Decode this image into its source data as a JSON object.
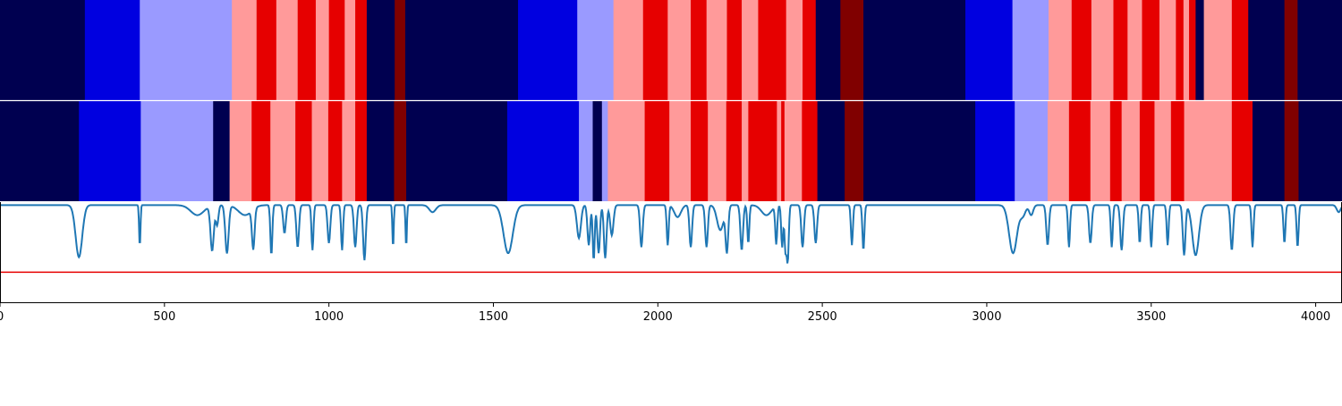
{
  "chart_data": {
    "type": "heatmap",
    "x_range": [
      0,
      4080
    ],
    "x_ticks": [
      0,
      500,
      1000,
      1500,
      2000,
      2500,
      3000,
      3500,
      4000
    ],
    "x_tick_labels": [
      "0",
      "500",
      "1000",
      "1500",
      "2000",
      "2500",
      "3000",
      "3500",
      "4000"
    ],
    "class_colors": {
      "0": "#000050",
      "1": "#0000e0",
      "2": "#9a9aff",
      "3": "#ff9a9a",
      "4": "#e60000",
      "5": "#800000"
    },
    "tracks": [
      {
        "segments": [
          [
            0,
            258,
            0
          ],
          [
            258,
            425,
            1
          ],
          [
            425,
            705,
            2
          ],
          [
            705,
            780,
            3
          ],
          [
            780,
            840,
            4
          ],
          [
            840,
            905,
            3
          ],
          [
            905,
            960,
            4
          ],
          [
            960,
            1000,
            3
          ],
          [
            1000,
            1048,
            4
          ],
          [
            1048,
            1080,
            3
          ],
          [
            1080,
            1115,
            4
          ],
          [
            1115,
            1200,
            0
          ],
          [
            1200,
            1232,
            5
          ],
          [
            1232,
            1575,
            0
          ],
          [
            1575,
            1755,
            1
          ],
          [
            1755,
            1865,
            2
          ],
          [
            1865,
            1955,
            3
          ],
          [
            1955,
            2030,
            4
          ],
          [
            2030,
            2100,
            3
          ],
          [
            2100,
            2148,
            4
          ],
          [
            2148,
            2210,
            3
          ],
          [
            2210,
            2255,
            4
          ],
          [
            2255,
            2305,
            3
          ],
          [
            2305,
            2390,
            4
          ],
          [
            2390,
            2440,
            3
          ],
          [
            2440,
            2480,
            4
          ],
          [
            2480,
            2555,
            0
          ],
          [
            2555,
            2625,
            5
          ],
          [
            2625,
            2935,
            0
          ],
          [
            2935,
            3078,
            1
          ],
          [
            3078,
            3188,
            2
          ],
          [
            3188,
            3258,
            3
          ],
          [
            3258,
            3318,
            4
          ],
          [
            3318,
            3385,
            3
          ],
          [
            3385,
            3428,
            4
          ],
          [
            3428,
            3472,
            3
          ],
          [
            3472,
            3525,
            4
          ],
          [
            3525,
            3575,
            3
          ],
          [
            3575,
            3598,
            4
          ],
          [
            3598,
            3615,
            3
          ],
          [
            3615,
            3635,
            4
          ],
          [
            3635,
            3660,
            0
          ],
          [
            3660,
            3745,
            3
          ],
          [
            3745,
            3795,
            4
          ],
          [
            3795,
            3905,
            0
          ],
          [
            3905,
            3945,
            5
          ],
          [
            3945,
            4080,
            0
          ]
        ]
      },
      {
        "segments": [
          [
            0,
            240,
            0
          ],
          [
            240,
            428,
            1
          ],
          [
            428,
            648,
            2
          ],
          [
            648,
            698,
            0
          ],
          [
            698,
            765,
            3
          ],
          [
            765,
            822,
            4
          ],
          [
            822,
            898,
            3
          ],
          [
            898,
            948,
            4
          ],
          [
            948,
            998,
            3
          ],
          [
            998,
            1040,
            4
          ],
          [
            1040,
            1080,
            3
          ],
          [
            1080,
            1115,
            4
          ],
          [
            1115,
            1198,
            0
          ],
          [
            1198,
            1235,
            5
          ],
          [
            1235,
            1542,
            0
          ],
          [
            1542,
            1760,
            1
          ],
          [
            1760,
            1802,
            2
          ],
          [
            1802,
            1830,
            0
          ],
          [
            1830,
            1848,
            2
          ],
          [
            1848,
            1960,
            3
          ],
          [
            1960,
            2035,
            4
          ],
          [
            2035,
            2100,
            3
          ],
          [
            2100,
            2152,
            4
          ],
          [
            2152,
            2208,
            3
          ],
          [
            2208,
            2255,
            4
          ],
          [
            2255,
            2275,
            3
          ],
          [
            2275,
            2362,
            4
          ],
          [
            2362,
            2375,
            3
          ],
          [
            2375,
            2385,
            4
          ],
          [
            2385,
            2438,
            3
          ],
          [
            2438,
            2485,
            4
          ],
          [
            2485,
            2568,
            0
          ],
          [
            2568,
            2625,
            5
          ],
          [
            2625,
            2965,
            0
          ],
          [
            2965,
            3085,
            1
          ],
          [
            3085,
            3185,
            2
          ],
          [
            3185,
            3250,
            3
          ],
          [
            3250,
            3315,
            4
          ],
          [
            3315,
            3375,
            3
          ],
          [
            3375,
            3410,
            4
          ],
          [
            3410,
            3465,
            3
          ],
          [
            3465,
            3510,
            4
          ],
          [
            3510,
            3560,
            3
          ],
          [
            3560,
            3600,
            4
          ],
          [
            3600,
            3745,
            3
          ],
          [
            3745,
            3808,
            4
          ],
          [
            3808,
            3905,
            0
          ],
          [
            3905,
            3948,
            5
          ],
          [
            3948,
            4080,
            0
          ]
        ]
      }
    ],
    "series": [
      {
        "color": "#1f77b4",
        "baseline": 0.97,
        "dips": [
          [
            240,
            0.52,
            10
          ],
          [
            425,
            0.42,
            2
          ],
          [
            600,
            0.1,
            20
          ],
          [
            645,
            0.45,
            5
          ],
          [
            660,
            0.2,
            4
          ],
          [
            690,
            0.48,
            5
          ],
          [
            745,
            0.1,
            20
          ],
          [
            770,
            0.4,
            4
          ],
          [
            825,
            0.5,
            3
          ],
          [
            865,
            0.28,
            4
          ],
          [
            905,
            0.42,
            4
          ],
          [
            950,
            0.45,
            3
          ],
          [
            1000,
            0.38,
            4
          ],
          [
            1040,
            0.45,
            3
          ],
          [
            1080,
            0.42,
            4
          ],
          [
            1108,
            0.55,
            4
          ],
          [
            1195,
            0.43,
            2
          ],
          [
            1235,
            0.42,
            2
          ],
          [
            1315,
            0.07,
            10
          ],
          [
            1545,
            0.48,
            14
          ],
          [
            1760,
            0.33,
            6
          ],
          [
            1790,
            0.4,
            4
          ],
          [
            1805,
            0.55,
            3
          ],
          [
            1820,
            0.48,
            4
          ],
          [
            1840,
            0.53,
            4
          ],
          [
            1860,
            0.3,
            5
          ],
          [
            1950,
            0.42,
            4
          ],
          [
            2030,
            0.4,
            3
          ],
          [
            2060,
            0.12,
            10
          ],
          [
            2100,
            0.42,
            4
          ],
          [
            2148,
            0.42,
            4
          ],
          [
            2190,
            0.25,
            10
          ],
          [
            2210,
            0.45,
            4
          ],
          [
            2255,
            0.45,
            4
          ],
          [
            2275,
            0.38,
            3
          ],
          [
            2330,
            0.1,
            15
          ],
          [
            2360,
            0.38,
            3
          ],
          [
            2378,
            0.42,
            3
          ],
          [
            2388,
            0.45,
            3
          ],
          [
            2395,
            0.55,
            3
          ],
          [
            2440,
            0.42,
            4
          ],
          [
            2480,
            0.38,
            4
          ],
          [
            2590,
            0.4,
            3
          ],
          [
            2625,
            0.45,
            3
          ],
          [
            3080,
            0.48,
            12
          ],
          [
            3110,
            0.1,
            8
          ],
          [
            3135,
            0.1,
            6
          ],
          [
            3185,
            0.4,
            4
          ],
          [
            3250,
            0.42,
            3
          ],
          [
            3315,
            0.38,
            4
          ],
          [
            3380,
            0.42,
            3
          ],
          [
            3410,
            0.45,
            4
          ],
          [
            3465,
            0.38,
            3
          ],
          [
            3500,
            0.42,
            3
          ],
          [
            3550,
            0.4,
            3
          ],
          [
            3600,
            0.5,
            4
          ],
          [
            3635,
            0.5,
            10
          ],
          [
            3745,
            0.45,
            4
          ],
          [
            3808,
            0.42,
            3
          ],
          [
            3905,
            0.38,
            3
          ],
          [
            3945,
            0.42,
            3
          ],
          [
            4070,
            0.07,
            6
          ]
        ]
      }
    ],
    "threshold": {
      "value": 0.3,
      "color": "#e60000"
    },
    "grid": false,
    "legend": "none"
  }
}
